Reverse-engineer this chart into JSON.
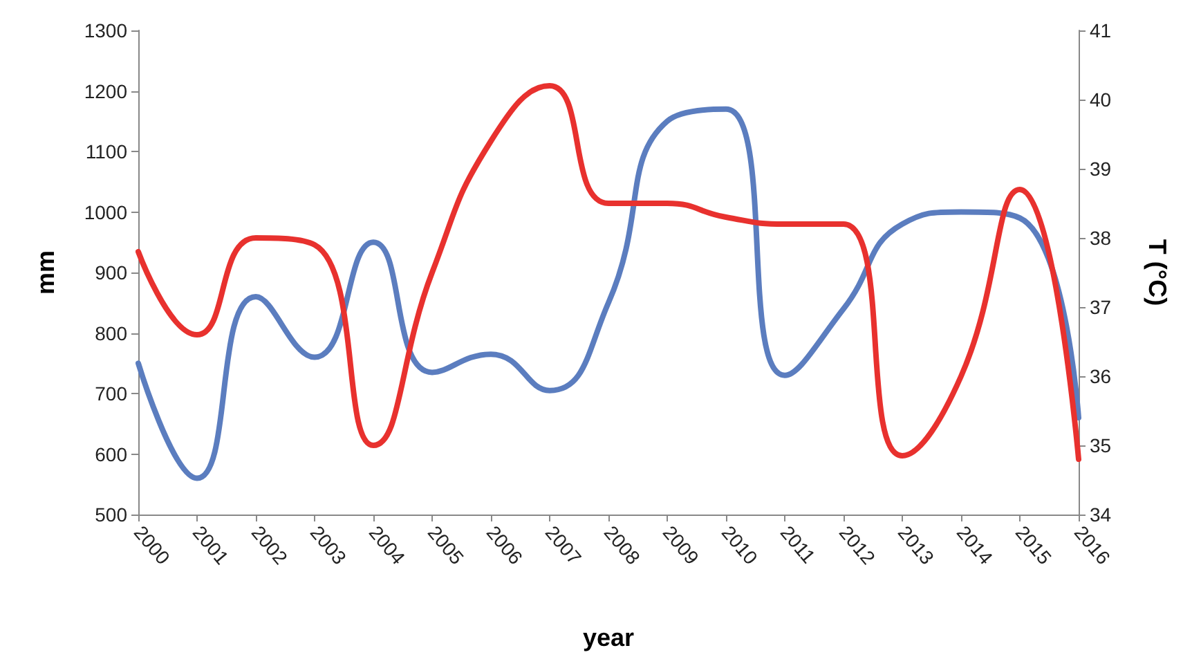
{
  "chart_data": {
    "type": "line",
    "xlabel": "year",
    "ylabel": "mm",
    "y2label": "T (°C)",
    "categories": [
      "2000",
      "2001",
      "2002",
      "2003",
      "2004",
      "2005",
      "2006",
      "2007",
      "2008",
      "2009",
      "2010",
      "2011",
      "2012",
      "2013",
      "2014",
      "2015",
      "2016"
    ],
    "ylim": [
      500,
      1300
    ],
    "yticks": [
      500,
      600,
      700,
      800,
      900,
      1000,
      1100,
      1200,
      1300
    ],
    "y2lim": [
      34,
      41
    ],
    "y2ticks": [
      34,
      35,
      36,
      37,
      38,
      39,
      40,
      41
    ],
    "marker": "none",
    "line_style": "solid",
    "series": [
      {
        "color": "#5b7dbf",
        "values": [
          750,
          560,
          860,
          760,
          950,
          735,
          765,
          705,
          850,
          1150,
          1170,
          730,
          840,
          980,
          1000,
          990,
          660
        ]
      },
      {
        "color": "#e8312e",
        "axis": "y2",
        "values": [
          37.8,
          36.6,
          38.0,
          37.9,
          35.0,
          37.5,
          39.4,
          40.2,
          38.5,
          38.5,
          38.3,
          38.2,
          38.2,
          34.85,
          36.0,
          38.7,
          34.8
        ]
      }
    ]
  }
}
